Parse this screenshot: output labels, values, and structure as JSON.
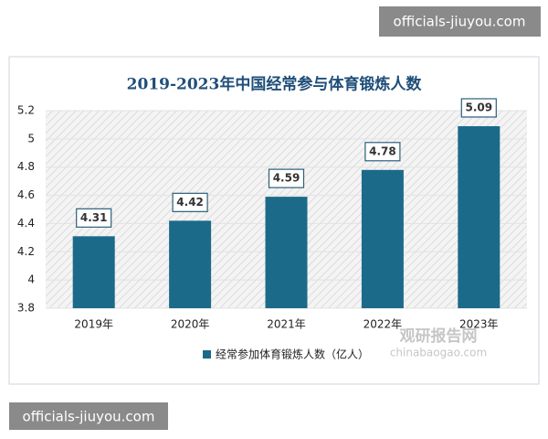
{
  "chart_data": {
    "type": "bar",
    "title": "2019-2023年中国经常参与体育锻炼人数",
    "categories": [
      "2019年",
      "2020年",
      "2021年",
      "2022年",
      "2023年"
    ],
    "series": [
      {
        "name": "经常参加体育锻炼人数（亿人）",
        "color": "#1b6a8a",
        "values": [
          4.31,
          4.42,
          4.59,
          4.78,
          5.09
        ]
      }
    ],
    "ylim": [
      3.8,
      5.2
    ],
    "yticks": [
      3.8,
      4,
      4.2,
      4.4,
      4.6,
      4.8,
      5,
      5.2
    ],
    "grid": true,
    "legend": "bottom"
  },
  "watermarks": [
    "officials-jiuyou.com",
    "officials-jiuyou.com"
  ],
  "source_logo": {
    "name": "观研报告网",
    "site": "chinabaogao.com"
  }
}
